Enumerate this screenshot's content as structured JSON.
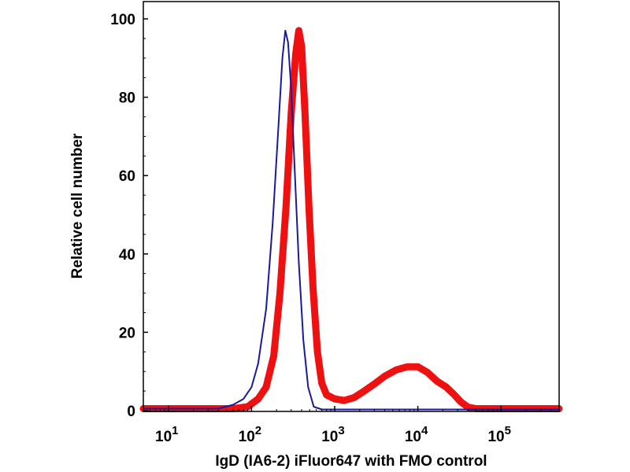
{
  "chart_data": {
    "type": "line",
    "title": "",
    "xlabel": "IgD (IA6-2) iFluor647 with FMO control",
    "ylabel": "Relative cell number",
    "x_scale": "log",
    "xlim": [
      5,
      500000
    ],
    "ylim": [
      0,
      100
    ],
    "y_ticks": [
      "0",
      "20",
      "40",
      "60",
      "80",
      "100"
    ],
    "x_ticks": [
      {
        "value": 10,
        "base": "10",
        "exp": "1"
      },
      {
        "value": 100,
        "base": "10",
        "exp": "2"
      },
      {
        "value": 1000,
        "base": "10",
        "exp": "3"
      },
      {
        "value": 10000,
        "base": "10",
        "exp": "4"
      },
      {
        "value": 100000,
        "base": "10",
        "exp": "5"
      }
    ],
    "grid": false,
    "legend": "none",
    "series": [
      {
        "color": "#1a1a9e",
        "style": "thin",
        "points": [
          [
            5,
            0.5
          ],
          [
            40,
            0.5
          ],
          [
            60,
            1.5
          ],
          [
            80,
            3
          ],
          [
            100,
            6
          ],
          [
            120,
            12
          ],
          [
            150,
            26
          ],
          [
            180,
            48
          ],
          [
            210,
            72
          ],
          [
            235,
            90
          ],
          [
            255,
            97
          ],
          [
            275,
            94
          ],
          [
            300,
            82
          ],
          [
            330,
            62
          ],
          [
            370,
            38
          ],
          [
            420,
            18
          ],
          [
            480,
            6
          ],
          [
            560,
            1
          ],
          [
            700,
            0.3
          ],
          [
            500000,
            0.3
          ]
        ]
      },
      {
        "color": "#ee1111",
        "style": "thick",
        "points": [
          [
            5,
            0.5
          ],
          [
            60,
            0.5
          ],
          [
            90,
            1
          ],
          [
            120,
            3
          ],
          [
            150,
            6
          ],
          [
            185,
            14
          ],
          [
            220,
            30
          ],
          [
            260,
            52
          ],
          [
            300,
            76
          ],
          [
            340,
            91
          ],
          [
            370,
            97
          ],
          [
            400,
            93
          ],
          [
            440,
            76
          ],
          [
            490,
            52
          ],
          [
            550,
            31
          ],
          [
            620,
            15
          ],
          [
            700,
            7
          ],
          [
            800,
            4
          ],
          [
            1000,
            3
          ],
          [
            1300,
            2.6
          ],
          [
            1700,
            3.3
          ],
          [
            2200,
            4.8
          ],
          [
            3000,
            6.8
          ],
          [
            4000,
            8.8
          ],
          [
            5500,
            10.4
          ],
          [
            7500,
            11.2
          ],
          [
            10000,
            11.2
          ],
          [
            13000,
            9.8
          ],
          [
            17000,
            7.5
          ],
          [
            22000,
            6
          ],
          [
            27000,
            4.2
          ],
          [
            33000,
            2.2
          ],
          [
            40000,
            0.9
          ],
          [
            50000,
            0.5
          ],
          [
            500000,
            0.5
          ]
        ]
      }
    ]
  }
}
